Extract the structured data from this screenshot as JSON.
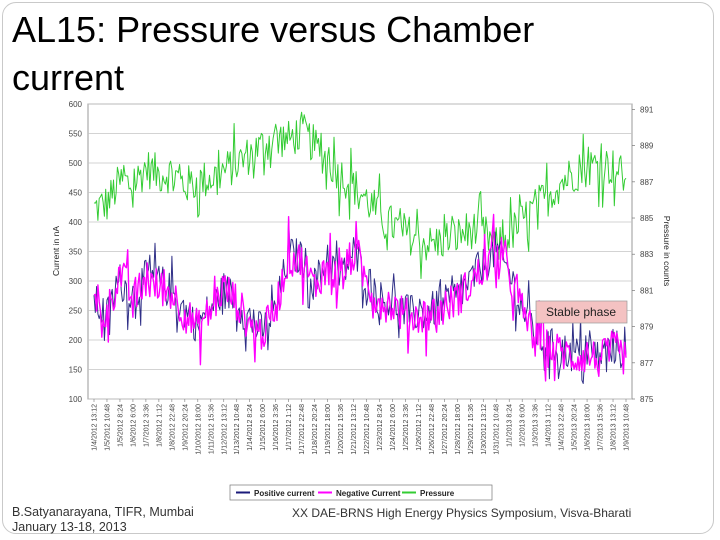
{
  "slide": {
    "title": "AL15: Pressure versus Chamber current",
    "footer_left_line1": "B.Satyanarayana, TIFR, Mumbai",
    "footer_left_line2": "January 13-18, 2013",
    "footer_right": "XX DAE-BRNS High Energy Physics Symposium, Visva-Bharati"
  },
  "chart_data": {
    "type": "line",
    "title": "",
    "xlabel": "",
    "ylabel": "Current in nA",
    "y2label": "Pressure in counts",
    "ylim": [
      100,
      600
    ],
    "yticks": [
      100,
      150,
      200,
      250,
      300,
      350,
      400,
      450,
      500,
      550,
      600
    ],
    "y2lim": [
      875,
      891.3
    ],
    "y2ticks": [
      875,
      877,
      879,
      881,
      883,
      885,
      887,
      889,
      891
    ],
    "y2ticklabels": [
      "875",
      "877",
      "879",
      "881",
      "883",
      "885",
      "887",
      "889",
      "891"
    ],
    "grid": true,
    "legend_position": "bottom",
    "annotation": "Stable phase",
    "x": [
      "1/4/2012 13:12",
      "1/5/2012 10:48",
      "1/5/2012 8:24",
      "1/6/2012 6:00",
      "1/7/2012 3:36",
      "1/8/2012 1:12",
      "1/8/2012 22:48",
      "1/9/2012 20:24",
      "1/10/2012 18:00",
      "1/11/2012 15:36",
      "1/12/2012 13:12",
      "1/13/2012 10:48",
      "1/14/2012 8:24",
      "1/15/2012 6:00",
      "1/16/2012 3:36",
      "1/17/2012 1:12",
      "1/17/2012 22:48",
      "1/18/2012 20:24",
      "1/19/2012 18:00",
      "1/20/2012 15:36",
      "1/21/2012 13:12",
      "1/22/2012 10:48",
      "1/23/2012 8:24",
      "1/24/2012 6:00",
      "1/25/2012 3:36",
      "1/26/2012 1:12",
      "1/26/2012 22:48",
      "1/27/2012 20:24",
      "1/28/2012 18:00",
      "1/29/2012 15:36",
      "1/30/2012 13:12",
      "1/31/2012 10:48",
      "1/1/2013 8:24",
      "1/2/2013 6:00",
      "1/3/2013 3:36",
      "1/4/2013 1:12",
      "1/4/2013 22:48",
      "1/5/2013 20:24",
      "1/6/2013 18:00",
      "1/7/2013 15:36",
      "1/8/2013 13:12",
      "1/9/2013 10:48"
    ],
    "series": [
      {
        "name": "Positive current",
        "color": "#1a1a7a",
        "axis": "left",
        "values": [
          265,
          240,
          300,
          275,
          305,
          300,
          280,
          250,
          225,
          255,
          285,
          270,
          230,
          215,
          250,
          345,
          340,
          295,
          335,
          305,
          350,
          305,
          270,
          265,
          245,
          245,
          250,
          260,
          275,
          300,
          325,
          355,
          315,
          255,
          210,
          190,
          185,
          175,
          180,
          170,
          190,
          175
        ]
      },
      {
        "name": "Negative Current",
        "color": "#ff00ff",
        "axis": "left",
        "values": [
          255,
          245,
          315,
          270,
          300,
          290,
          280,
          245,
          220,
          250,
          290,
          265,
          225,
          210,
          255,
          340,
          335,
          290,
          330,
          300,
          345,
          300,
          265,
          260,
          240,
          240,
          245,
          255,
          270,
          295,
          320,
          350,
          310,
          250,
          205,
          185,
          180,
          170,
          175,
          165,
          185,
          170
        ]
      },
      {
        "name": "Pressure",
        "color": "#33cc33",
        "axis": "right",
        "values": [
          885.5,
          885.8,
          887.0,
          886.8,
          887.8,
          887.4,
          887.5,
          886.8,
          887.0,
          887.2,
          887.6,
          888.0,
          888.5,
          889.0,
          889.5,
          889.3,
          889.8,
          889.0,
          888.2,
          887.4,
          886.8,
          886.0,
          885.2,
          884.6,
          884.2,
          883.8,
          883.5,
          883.8,
          884.0,
          884.4,
          884.2,
          883.4,
          884.0,
          884.8,
          885.6,
          886.2,
          887.0,
          887.5,
          887.8,
          888.0,
          887.8,
          887.2
        ]
      }
    ]
  }
}
